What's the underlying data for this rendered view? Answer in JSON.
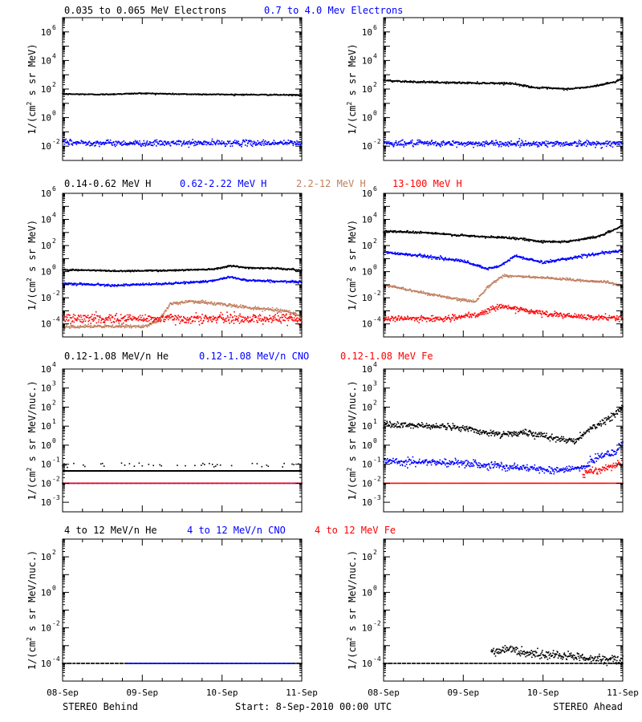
{
  "footer": {
    "left": "STEREO Behind",
    "center": "Start:  8-Sep-2010 00:00 UTC",
    "right": "STEREO Ahead"
  },
  "x_axis": {
    "tick_labels": [
      "08-Sep",
      "09-Sep",
      "10-Sep",
      "11-Sep"
    ],
    "range_days": [
      0,
      3
    ]
  },
  "colors": {
    "black": "#000000",
    "blue": "#0000ff",
    "brown": "#c08060",
    "red": "#ff0000"
  },
  "chart_data": [
    {
      "id": "electrons",
      "type": "scatter",
      "legend": [
        {
          "label": "0.035 to 0.065 MeV Electrons",
          "color": "#000000"
        },
        {
          "label": "0.7 to 4.0 Mev Electrons",
          "color": "#0000ff"
        }
      ],
      "ylabel": "1/(cm² s sr MeV)",
      "ylabel_parts": [
        "1/(cm",
        "2",
        " s sr MeV)"
      ],
      "yscale": "log",
      "ylim_exp": [
        -3,
        7
      ],
      "ytick_exps": [
        -2,
        0,
        2,
        4,
        6
      ],
      "behind": [
        {
          "color": "#000000",
          "x": [
            0,
            0.5,
            1,
            1.5,
            2,
            2.5,
            3
          ],
          "log10y": [
            1.65,
            1.62,
            1.7,
            1.64,
            1.62,
            1.6,
            1.58
          ],
          "noise": 0.02
        },
        {
          "color": "#0000ff",
          "x": [
            0,
            1,
            2,
            3
          ],
          "log10y": [
            -1.75,
            -1.8,
            -1.78,
            -1.78
          ],
          "noise": 0.1
        }
      ],
      "ahead": [
        {
          "color": "#000000",
          "x": [
            0,
            0.4,
            0.8,
            1.2,
            1.6,
            1.9,
            2.3,
            2.6,
            2.9,
            3
          ],
          "log10y": [
            2.6,
            2.5,
            2.45,
            2.42,
            2.4,
            2.1,
            2.0,
            2.15,
            2.5,
            2.75
          ],
          "noise": 0.03
        },
        {
          "color": "#0000ff",
          "x": [
            0,
            1,
            2,
            3
          ],
          "log10y": [
            -1.8,
            -1.82,
            -1.82,
            -1.82
          ],
          "noise": 0.1
        }
      ]
    },
    {
      "id": "protons",
      "type": "scatter",
      "legend": [
        {
          "label": "0.14-0.62 MeV H",
          "color": "#000000"
        },
        {
          "label": "0.62-2.22 MeV H",
          "color": "#0000ff"
        },
        {
          "label": "2.2-12 MeV H",
          "color": "#c08060"
        },
        {
          "label": "13-100 MeV H",
          "color": "#ff0000"
        }
      ],
      "ylabel": "1/(cm² s sr MeV)",
      "ylabel_parts": [
        "1/(cm",
        "2",
        " s sr MeV)"
      ],
      "yscale": "log",
      "ylim_exp": [
        -5,
        6
      ],
      "ytick_exps": [
        -4,
        -2,
        0,
        2,
        4,
        6
      ],
      "behind": [
        {
          "color": "#000000",
          "x": [
            0,
            0.7,
            1.4,
            1.9,
            2.1,
            2.3,
            2.7,
            3
          ],
          "log10y": [
            0.15,
            0.05,
            0.1,
            0.2,
            0.45,
            0.3,
            0.25,
            0.1
          ],
          "noise": 0.03
        },
        {
          "color": "#0000ff",
          "x": [
            0,
            0.7,
            1.4,
            1.9,
            2.1,
            2.3,
            2.7,
            3
          ],
          "log10y": [
            -0.9,
            -1.05,
            -0.9,
            -0.7,
            -0.4,
            -0.65,
            -0.75,
            -0.8
          ],
          "noise": 0.04
        },
        {
          "color": "#c08060",
          "x": [
            0,
            1.0,
            1.2,
            1.35,
            1.6,
            2.0,
            2.4,
            2.8,
            3
          ],
          "log10y": [
            -4.2,
            -4.2,
            -3.8,
            -2.5,
            -2.25,
            -2.5,
            -2.8,
            -3.0,
            -3.4
          ],
          "noise": 0.06
        },
        {
          "color": "#ff0000",
          "x": [
            0,
            1,
            2,
            3
          ],
          "log10y": [
            -3.6,
            -3.6,
            -3.6,
            -3.6
          ],
          "noise": 0.18
        }
      ],
      "ahead": [
        {
          "color": "#000000",
          "x": [
            0,
            0.5,
            0.9,
            1.3,
            1.6,
            2.0,
            2.3,
            2.7,
            3
          ],
          "log10y": [
            3.1,
            3.0,
            2.8,
            2.65,
            2.6,
            2.3,
            2.3,
            2.7,
            3.5
          ],
          "noise": 0.04
        },
        {
          "color": "#0000ff",
          "x": [
            0,
            0.5,
            1.0,
            1.3,
            1.45,
            1.65,
            2.0,
            2.6,
            3
          ],
          "log10y": [
            1.5,
            1.2,
            0.8,
            0.2,
            0.4,
            1.2,
            0.7,
            1.3,
            1.6
          ],
          "noise": 0.05
        },
        {
          "color": "#c08060",
          "x": [
            0,
            0.4,
            0.9,
            1.15,
            1.3,
            1.5,
            1.8,
            2.3,
            2.8,
            3
          ],
          "log10y": [
            -1.0,
            -1.5,
            -2.1,
            -2.3,
            -1.2,
            -0.3,
            -0.4,
            -0.6,
            -0.8,
            -1.1
          ],
          "noise": 0.05
        },
        {
          "color": "#ff0000",
          "x": [
            0,
            0.8,
            1.2,
            1.45,
            1.7,
            2.0,
            2.5,
            3
          ],
          "log10y": [
            -3.6,
            -3.6,
            -3.3,
            -2.6,
            -2.9,
            -3.2,
            -3.5,
            -3.55
          ],
          "noise": 0.1
        }
      ]
    },
    {
      "id": "heavy-low",
      "type": "scatter",
      "legend": [
        {
          "label": "0.12-1.08 MeV/n He",
          "color": "#000000"
        },
        {
          "label": "0.12-1.08 MeV/n CNO",
          "color": "#0000ff"
        },
        {
          "label": "0.12-1.08 MeV Fe",
          "color": "#ff0000"
        }
      ],
      "ylabel": "1/(cm² s sr MeV/nuc.)",
      "ylabel_parts": [
        "1/(cm",
        "2",
        " s sr MeV/nuc.)"
      ],
      "yscale": "log",
      "ylim_exp": [
        -3.5,
        4
      ],
      "ytick_exps": [
        -3,
        -2,
        -1,
        0,
        1,
        2,
        3,
        4
      ],
      "behind": [
        {
          "color": "#000000",
          "x": [
            0,
            3
          ],
          "log10y": [
            -1.35,
            -1.35
          ],
          "noise": 0,
          "style": "line"
        },
        {
          "color": "#000000",
          "x": [
            0,
            3
          ],
          "log10y": [
            -1.05,
            -1.05
          ],
          "noise": 0.05,
          "style": "sparse"
        },
        {
          "color": "#0000ff",
          "x": [
            0,
            3
          ],
          "log10y": [
            -2.0,
            -2.0
          ],
          "noise": 0,
          "style": "dashdot"
        },
        {
          "color": "#ff0000",
          "x": [
            0,
            3
          ],
          "log10y": [
            -2.0,
            -2.0
          ],
          "noise": 0,
          "style": "dots"
        }
      ],
      "ahead": [
        {
          "color": "#000000",
          "x": [
            0,
            0.5,
            0.9,
            1.2,
            1.5,
            1.8,
            2.1,
            2.4,
            2.6,
            2.8,
            3
          ],
          "log10y": [
            1.1,
            1.0,
            0.95,
            0.7,
            0.6,
            0.65,
            0.4,
            0.2,
            0.9,
            1.3,
            2.0
          ],
          "noise": 0.08
        },
        {
          "color": "#0000ff",
          "x": [
            0,
            0.5,
            1.0,
            1.4,
            1.8,
            2.2,
            2.5,
            2.7,
            2.9,
            3
          ],
          "log10y": [
            -0.8,
            -0.9,
            -0.95,
            -1.1,
            -1.2,
            -1.3,
            -1.2,
            -0.6,
            -0.4,
            0.1
          ],
          "noise": 0.1
        },
        {
          "color": "#ff0000",
          "x": [
            0,
            3
          ],
          "log10y": [
            -2.0,
            -2.0
          ],
          "noise": 0,
          "style": "dots"
        },
        {
          "color": "#ff0000",
          "x": [
            2.5,
            3
          ],
          "log10y": [
            -1.5,
            -1.0
          ],
          "noise": 0.1
        }
      ]
    },
    {
      "id": "heavy-high",
      "type": "scatter",
      "legend": [
        {
          "label": "4 to 12 MeV/n He",
          "color": "#000000"
        },
        {
          "label": "4 to 12 MeV/n CNO",
          "color": "#0000ff"
        },
        {
          "label": "4 to 12 MeV Fe",
          "color": "#ff0000"
        }
      ],
      "ylabel": "1/(cm² s sr MeV/nuc.)",
      "ylabel_parts": [
        "1/(cm",
        "2",
        " s sr MeV/nuc.)"
      ],
      "yscale": "log",
      "ylim_exp": [
        -5,
        3
      ],
      "ytick_exps": [
        -4,
        -2,
        0,
        2
      ],
      "behind": [
        {
          "color": "#000000",
          "x": [
            0,
            3
          ],
          "log10y": [
            -4.0,
            -4.0
          ],
          "noise": 0,
          "style": "dashdot"
        },
        {
          "color": "#0000ff",
          "x": [
            0.8,
            2.9
          ],
          "log10y": [
            -4.0,
            -4.0
          ],
          "noise": 0,
          "style": "dots"
        }
      ],
      "ahead": [
        {
          "color": "#000000",
          "x": [
            0,
            3
          ],
          "log10y": [
            -4.0,
            -4.0
          ],
          "noise": 0,
          "style": "dashdot"
        },
        {
          "color": "#000000",
          "x": [
            1.35,
            1.6,
            1.9,
            2.3,
            2.7,
            3
          ],
          "log10y": [
            -3.35,
            -3.2,
            -3.5,
            -3.6,
            -3.75,
            -3.8
          ],
          "noise": 0.12
        }
      ]
    }
  ]
}
